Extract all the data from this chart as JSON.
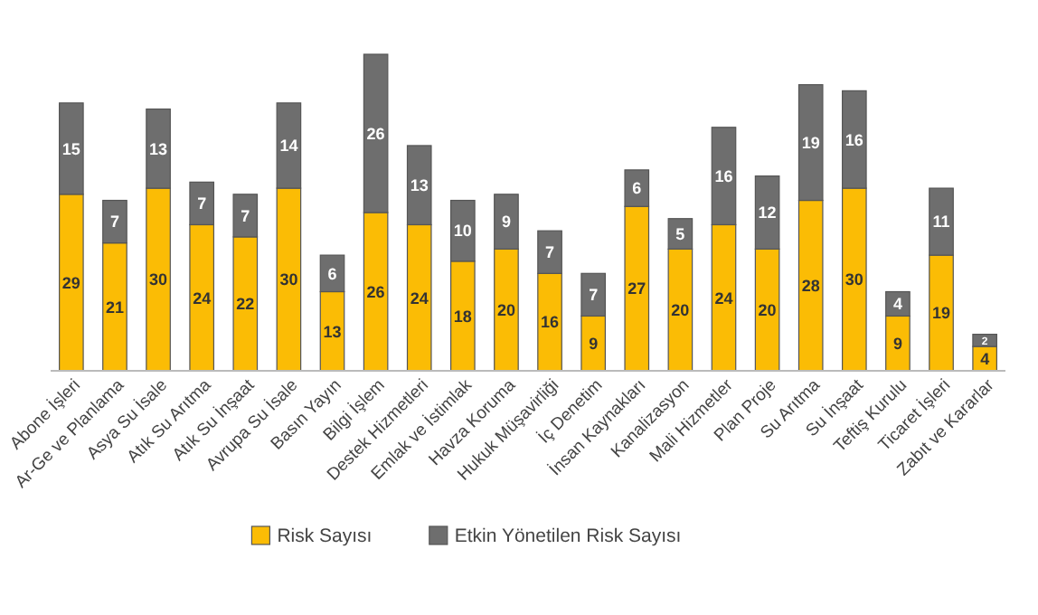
{
  "chart_data": {
    "type": "bar",
    "stacked": true,
    "data_labels": true,
    "legend": "bottom",
    "categories": [
      "Abone İşleri",
      "Ar-Ge ve Planlama",
      "Asya Su İsale",
      "Atık Su Arıtma",
      "Atık Su İnşaat",
      "Avrupa Su İsale",
      "Basın Yayın",
      "Bilgi İşlem",
      "Destek Hizmetleri",
      "Emlak ve İstimlak",
      "Havza Koruma",
      "Hukuk Müşavirliği",
      "İç Denetim",
      "İnsan Kaynakları",
      "Kanalizasyon",
      "Mali Hizmetler",
      "Plan Proje",
      "Su Arıtma",
      "Su İnşaat",
      "Teftiş Kurulu",
      "Ticaret İşleri",
      "Zabıt ve Kararlar"
    ],
    "series": [
      {
        "name": "Risk Sayısı",
        "color": "#fbbc05",
        "values": [
          29,
          21,
          30,
          24,
          22,
          30,
          13,
          26,
          24,
          18,
          20,
          16,
          9,
          27,
          20,
          24,
          20,
          28,
          30,
          9,
          19,
          4
        ]
      },
      {
        "name": "Etkin Yönetilen Risk Sayısı",
        "color": "#6e6e6e",
        "values": [
          15,
          7,
          13,
          7,
          7,
          14,
          6,
          26,
          13,
          10,
          9,
          7,
          7,
          6,
          5,
          16,
          12,
          19,
          16,
          4,
          11,
          2
        ]
      }
    ]
  }
}
